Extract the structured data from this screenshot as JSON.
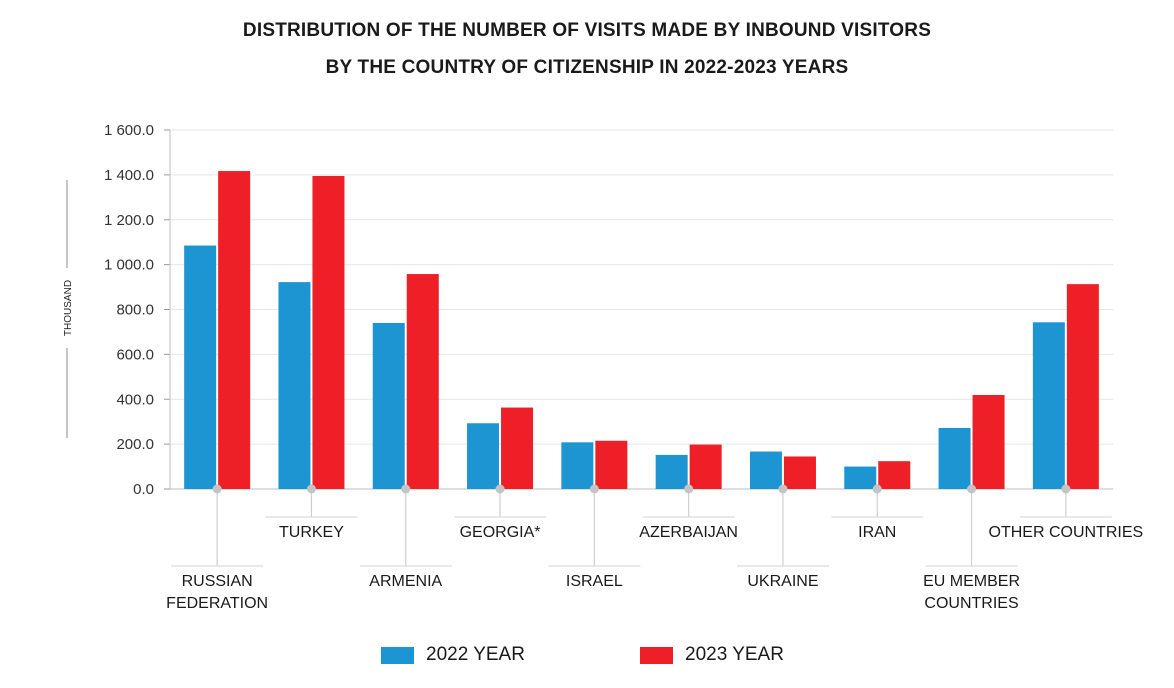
{
  "title_line1": "DISTRIBUTION OF THE NUMBER OF VISITS MADE BY INBOUND VISITORS",
  "title_line2": "BY THE COUNTRY OF CITIZENSHIP IN 2022-2023 YEARS",
  "colors": {
    "y2022": "#1e95d3",
    "y2023": "#ee1f26"
  },
  "chart_data": {
    "type": "bar",
    "ylabel": "THOUSAND",
    "ylim": [
      0,
      1600
    ],
    "yticks": [
      "0.0",
      "200.0",
      "400.0",
      "600.0",
      "800.0",
      "1 000.0",
      "1 200.0",
      "1 400.0",
      "1 600.0"
    ],
    "grid": true,
    "legend_position": "bottom",
    "categories": [
      [
        "RUSSIAN",
        "FEDERATION"
      ],
      [
        "TURKEY"
      ],
      [
        "ARMENIA"
      ],
      [
        "GEORGIA*"
      ],
      [
        "ISRAEL"
      ],
      [
        "AZERBAIJAN"
      ],
      [
        "UKRAINE"
      ],
      [
        "IRAN"
      ],
      [
        "EU MEMBER",
        "COUNTRIES"
      ],
      [
        "OTHER COUNTRIES"
      ]
    ],
    "series": [
      {
        "name": "2022 YEAR",
        "values": [
          1085,
          922,
          740,
          293,
          208,
          152,
          167,
          100,
          272,
          743
        ]
      },
      {
        "name": "2023 YEAR",
        "values": [
          1417,
          1395,
          958,
          363,
          215,
          198,
          145,
          124,
          419,
          913
        ]
      }
    ]
  }
}
